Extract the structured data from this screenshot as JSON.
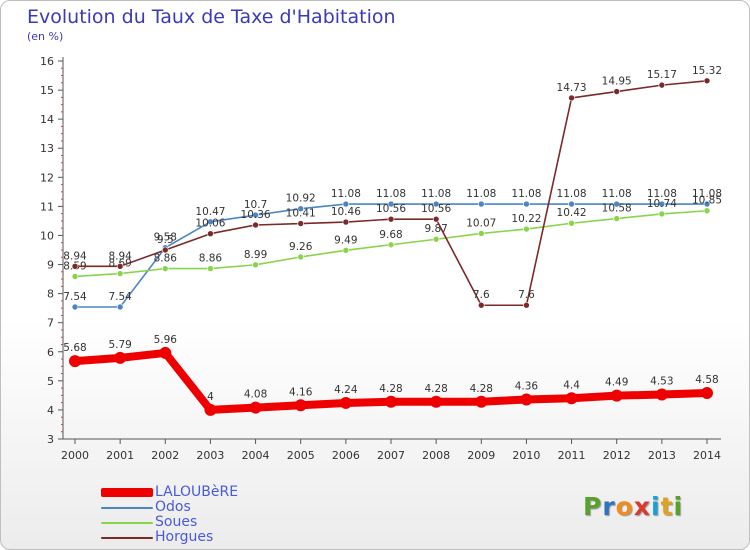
{
  "title": "Evolution du Taux de Taxe d'Habitation",
  "subtitle": "(en %)",
  "brand": [
    "P",
    "r",
    "o",
    "x",
    "i",
    "t",
    "i"
  ],
  "brand_colors": [
    "#5aa02c",
    "#2f74c0",
    "#f08c1e",
    "#d83a2c",
    "#1aa0d8",
    "#e0a020",
    "#5aa02c"
  ],
  "chart_data": {
    "type": "line",
    "x": [
      "2000",
      "2001",
      "2002",
      "2003",
      "2004",
      "2005",
      "2006",
      "2007",
      "2008",
      "2009",
      "2010",
      "2011",
      "2012",
      "2013",
      "2014"
    ],
    "ylim": [
      3,
      16
    ],
    "yticks": [
      3,
      4,
      5,
      6,
      7,
      8,
      9,
      10,
      11,
      12,
      13,
      14,
      15,
      16
    ],
    "grid": false,
    "legend": "bottom-left",
    "series": [
      {
        "name": "LALOUBèRE",
        "color": "#ee0000",
        "values": [
          5.68,
          5.79,
          5.96,
          4,
          4.08,
          4.16,
          4.24,
          4.28,
          4.28,
          4.28,
          4.36,
          4.4,
          4.49,
          4.53,
          4.58
        ],
        "labels": [
          "5.68",
          "5.79",
          "5.96",
          "4",
          "4.08",
          "4.16",
          "4.24",
          "4.28",
          "4.28",
          "4.28",
          "4.36",
          "4.4",
          "4.49",
          "4.53",
          "4.58"
        ]
      },
      {
        "name": "Odos",
        "color": "#4a86c4",
        "values": [
          7.54,
          7.54,
          9.58,
          10.47,
          10.7,
          10.92,
          11.08,
          11.08,
          11.08,
          11.08,
          11.08,
          11.08,
          11.08,
          11.08,
          11.08
        ],
        "labels": [
          "7.54",
          "7.54",
          "9.58",
          "10.47",
          "10.7",
          "10.92",
          "11.08",
          "11.08",
          "11.08",
          "11.08",
          "11.08",
          "11.08",
          "11.08",
          "11.08",
          "11.08"
        ]
      },
      {
        "name": "Soues",
        "color": "#88d44a",
        "values": [
          8.59,
          8.69,
          8.86,
          8.86,
          8.99,
          9.26,
          9.49,
          9.68,
          9.87,
          10.07,
          10.22,
          10.42,
          10.58,
          10.74,
          10.85
        ],
        "labels": [
          "8.59",
          "8.69",
          "8.86",
          "8.86",
          "8.99",
          "9.26",
          "9.49",
          "9.68",
          "9.87",
          "10.07",
          "10.22",
          "10.42",
          "10.58",
          "10.74",
          "10.85"
        ]
      },
      {
        "name": "Horgues",
        "color": "#7a2a2a",
        "values": [
          8.94,
          8.94,
          9.5,
          10.06,
          10.36,
          10.41,
          10.46,
          10.56,
          10.56,
          7.6,
          7.6,
          14.73,
          14.95,
          15.17,
          15.32
        ],
        "labels": [
          "8.94",
          "8.94",
          "9.5",
          "10.06",
          "10.36",
          "10.41",
          "10.46",
          "10.56",
          "10.56",
          "7.6",
          "7.6",
          "14.73",
          "14.95",
          "15.17",
          "15.32"
        ]
      }
    ]
  }
}
